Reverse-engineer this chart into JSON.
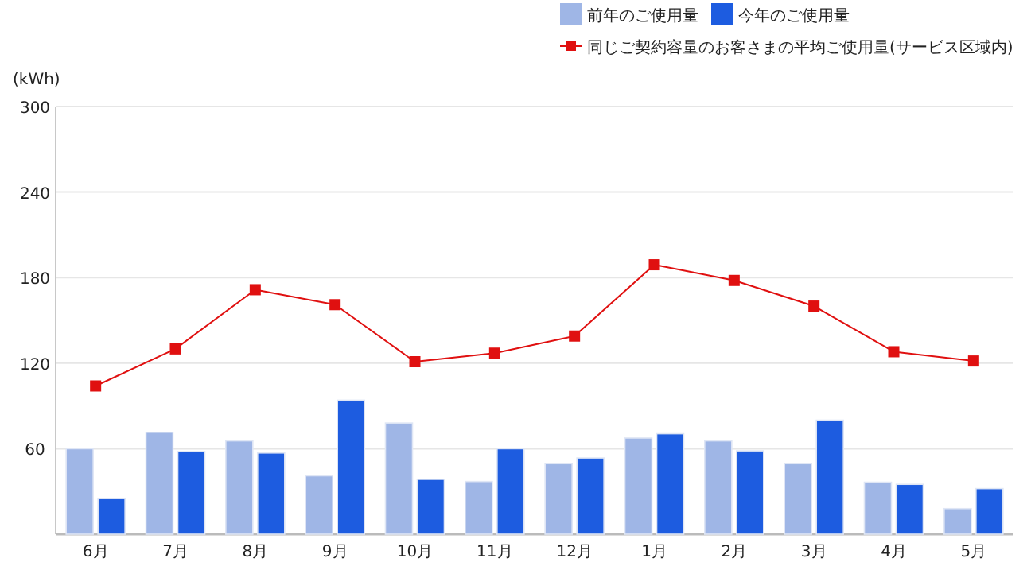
{
  "chart_data": {
    "type": "bar",
    "ylabel": "(kWh)",
    "categories": [
      "6月",
      "7月",
      "8月",
      "9月",
      "10月",
      "11月",
      "12月",
      "1月",
      "2月",
      "3月",
      "4月",
      "5月"
    ],
    "series": [
      {
        "name": "前年のご使用量",
        "color": "#9fb6e6",
        "values": [
          60,
          71.5,
          65.5,
          41,
          78,
          37,
          49.5,
          67.5,
          65.5,
          49.5,
          36.5,
          18
        ]
      },
      {
        "name": "今年のご使用量",
        "color": "#1d5ce0",
        "values": [
          25,
          58,
          57,
          94,
          38.5,
          60,
          53.5,
          70.5,
          58.5,
          80,
          35,
          32
        ]
      },
      {
        "name": "同じご契約容量のお客さまの平均ご使用量(サービス区域内)",
        "type": "line",
        "color": "#e01010",
        "marker": "square",
        "values": [
          104,
          130,
          171.5,
          161,
          121,
          127,
          139,
          189,
          178,
          160,
          128,
          121.5
        ]
      }
    ],
    "ylim": [
      0,
      300
    ],
    "yticks": [
      {
        "value": 0,
        "label": null
      },
      60,
      120,
      180,
      240,
      300
    ],
    "grid": "y",
    "legend": "top right"
  }
}
